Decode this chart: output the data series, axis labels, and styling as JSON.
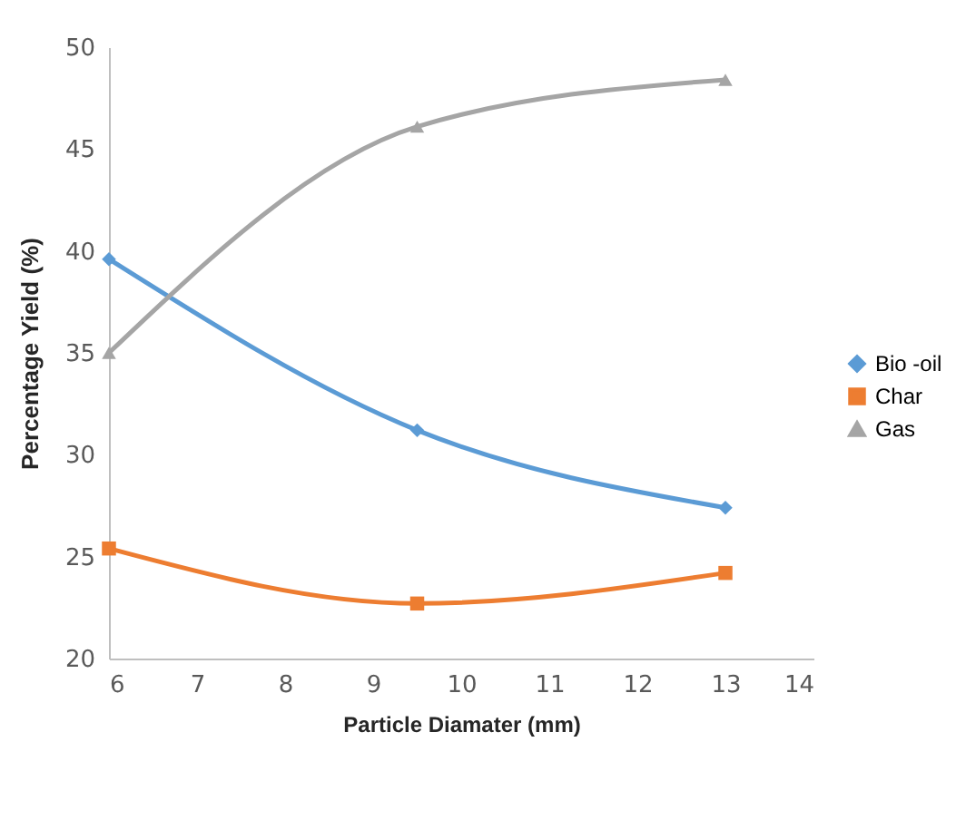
{
  "chart_data": {
    "type": "line",
    "xlabel": "Particle Diamater (mm)",
    "ylabel": "Percentage Yield (%)",
    "x": [
      6,
      9.5,
      13
    ],
    "series": [
      {
        "name": "Bio -oil",
        "color": "#5b9bd5",
        "marker": "diamond",
        "values": [
          39.6,
          31.2,
          27.4
        ]
      },
      {
        "name": "Char",
        "color": "#ed7d31",
        "marker": "square",
        "values": [
          25.4,
          22.7,
          24.2
        ]
      },
      {
        "name": "Gas",
        "color": "#a5a5a5",
        "marker": "triangle",
        "values": [
          35.0,
          46.1,
          48.4
        ]
      }
    ],
    "xlim": [
      6,
      14
    ],
    "xticks": [
      6,
      7,
      8,
      9,
      10,
      11,
      12,
      13,
      14
    ],
    "ylim": [
      20,
      50
    ],
    "yticks": [
      20,
      25,
      30,
      35,
      40,
      45,
      50
    ],
    "grid": false,
    "legend": "right"
  }
}
